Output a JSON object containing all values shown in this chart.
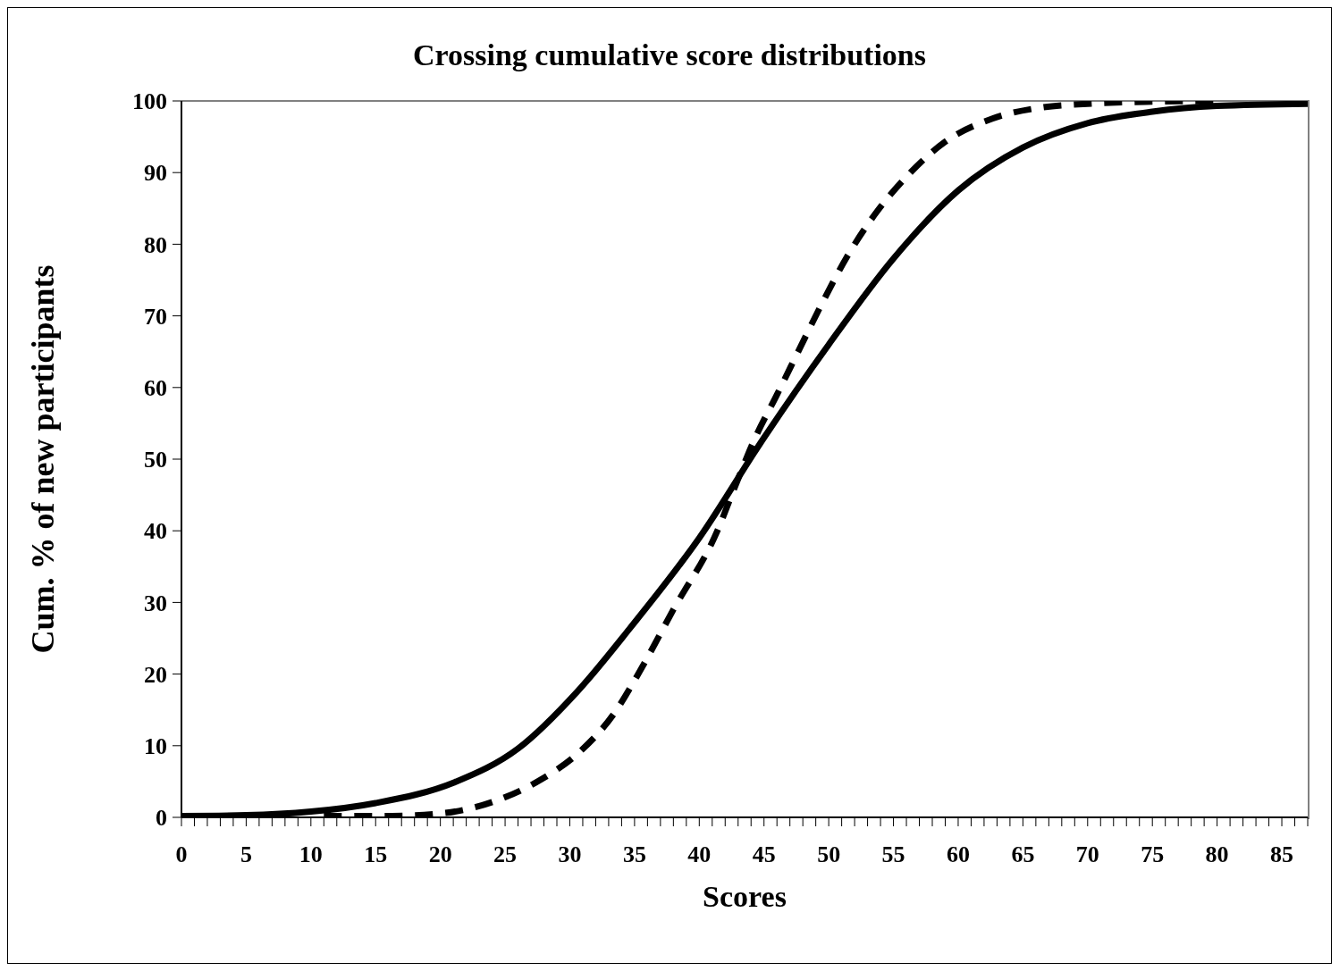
{
  "chart_data": {
    "type": "line",
    "title": "Crossing cumulative score distributions",
    "xlabel": "Scores",
    "ylabel": "Cum. % of new participants",
    "xlim": [
      0,
      87
    ],
    "ylim": [
      0,
      100
    ],
    "xticks": [
      0,
      {
        "value": 1,
        "label": null
      },
      {
        "value": 2,
        "label": null
      },
      {
        "value": 3,
        "label": null
      },
      {
        "value": 4,
        "label": null
      },
      5,
      {
        "value": 6,
        "label": null
      },
      {
        "value": 7,
        "label": null
      },
      {
        "value": 8,
        "label": null
      },
      {
        "value": 9,
        "label": null
      },
      10,
      {
        "value": 11,
        "label": null
      },
      {
        "value": 12,
        "label": null
      },
      {
        "value": 13,
        "label": null
      },
      {
        "value": 14,
        "label": null
      },
      15,
      {
        "value": 16,
        "label": null
      },
      {
        "value": 17,
        "label": null
      },
      {
        "value": 18,
        "label": null
      },
      {
        "value": 19,
        "label": null
      },
      20,
      {
        "value": 21,
        "label": null
      },
      {
        "value": 22,
        "label": null
      },
      {
        "value": 23,
        "label": null
      },
      {
        "value": 24,
        "label": null
      },
      25,
      {
        "value": 26,
        "label": null
      },
      {
        "value": 27,
        "label": null
      },
      {
        "value": 28,
        "label": null
      },
      {
        "value": 29,
        "label": null
      },
      30,
      {
        "value": 31,
        "label": null
      },
      {
        "value": 32,
        "label": null
      },
      {
        "value": 33,
        "label": null
      },
      {
        "value": 34,
        "label": null
      },
      35,
      {
        "value": 36,
        "label": null
      },
      {
        "value": 37,
        "label": null
      },
      {
        "value": 38,
        "label": null
      },
      {
        "value": 39,
        "label": null
      },
      40,
      {
        "value": 41,
        "label": null
      },
      {
        "value": 42,
        "label": null
      },
      {
        "value": 43,
        "label": null
      },
      {
        "value": 44,
        "label": null
      },
      45,
      {
        "value": 46,
        "label": null
      },
      {
        "value": 47,
        "label": null
      },
      {
        "value": 48,
        "label": null
      },
      {
        "value": 49,
        "label": null
      },
      50,
      {
        "value": 51,
        "label": null
      },
      {
        "value": 52,
        "label": null
      },
      {
        "value": 53,
        "label": null
      },
      {
        "value": 54,
        "label": null
      },
      55,
      {
        "value": 56,
        "label": null
      },
      {
        "value": 57,
        "label": null
      },
      {
        "value": 58,
        "label": null
      },
      {
        "value": 59,
        "label": null
      },
      60,
      {
        "value": 61,
        "label": null
      },
      {
        "value": 62,
        "label": null
      },
      {
        "value": 63,
        "label": null
      },
      {
        "value": 64,
        "label": null
      },
      65,
      {
        "value": 66,
        "label": null
      },
      {
        "value": 67,
        "label": null
      },
      {
        "value": 68,
        "label": null
      },
      {
        "value": 69,
        "label": null
      },
      70,
      {
        "value": 71,
        "label": null
      },
      {
        "value": 72,
        "label": null
      },
      {
        "value": 73,
        "label": null
      },
      {
        "value": 74,
        "label": null
      },
      75,
      {
        "value": 76,
        "label": null
      },
      {
        "value": 77,
        "label": null
      },
      {
        "value": 78,
        "label": null
      },
      {
        "value": 79,
        "label": null
      },
      80,
      {
        "value": 81,
        "label": null
      },
      {
        "value": 82,
        "label": null
      },
      {
        "value": 83,
        "label": null
      },
      {
        "value": 84,
        "label": null
      },
      85,
      {
        "value": 86,
        "label": null
      },
      {
        "value": 87,
        "label": null
      }
    ],
    "yticks": [
      0,
      10,
      20,
      30,
      40,
      50,
      60,
      70,
      80,
      90,
      100
    ],
    "grid": false,
    "legend": false,
    "marker": "none",
    "series": [
      {
        "color": "#000000",
        "line_style": "solid",
        "x": [
          0,
          5,
          10,
          15,
          21.1,
          26,
          30.6,
          34.6,
          40,
          45,
          50,
          55,
          60,
          65,
          70,
          75,
          80,
          87
        ],
        "values": [
          0.2,
          0.3,
          0.8,
          2,
          4.9,
          9.6,
          17.6,
          26.3,
          39,
          53,
          66,
          78,
          87.5,
          93.5,
          96.9,
          98.5,
          99.3,
          99.6
        ]
      },
      {
        "color": "#000000",
        "line_style": "dashed",
        "x": [
          11,
          12.4,
          16.3,
          20.3,
          24.1,
          27.7,
          30.8,
          33.5,
          35.5,
          38,
          41.4,
          42.7,
          44.3,
          46,
          47.8,
          49.5,
          51.4,
          53.5,
          56.1,
          59,
          62.6,
          66.5,
          70,
          75,
          80
        ],
        "values": [
          0.2,
          0.2,
          0.2,
          0.6,
          2.2,
          5.2,
          9.2,
          14.7,
          20.7,
          29,
          40,
          45.9,
          52.9,
          59,
          65.6,
          71.8,
          78.2,
          84,
          89.6,
          94.3,
          97.5,
          99.1,
          99.6,
          99.9,
          100
        ]
      }
    ]
  }
}
